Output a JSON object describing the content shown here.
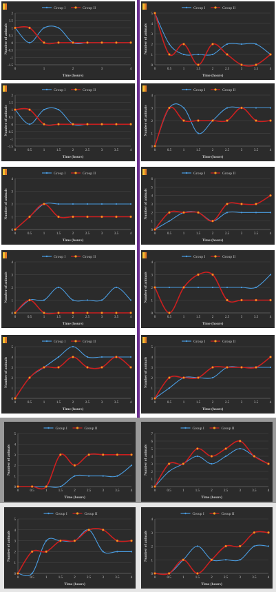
{
  "colors": {
    "group_1": "#4a9ce0",
    "group_2": "#cc1f1f",
    "group_2_marker": "#f0a020",
    "panel_bg": "#2b2b2b",
    "text": "#c8c8c8",
    "grid": "#4a4a4a"
  },
  "legend": {
    "group_1": "Group I",
    "group_2": "Group II"
  },
  "chart_data": [
    {
      "type": "line",
      "xlabel": "Time (hours)",
      "ylabel": "Number of animals",
      "x": [
        0,
        0.5,
        1,
        1.5,
        2,
        2.5,
        3,
        3.5,
        4
      ],
      "x_ticks": [
        0,
        1,
        2,
        3,
        4
      ],
      "ylim": [
        -1.5,
        2
      ],
      "y_ticks": [
        -1.5,
        -1,
        -0.5,
        0,
        0.5,
        1,
        1.5,
        2
      ],
      "legend_position": "top",
      "series": [
        {
          "name": "Group I",
          "values": [
            1,
            0,
            1,
            1,
            0,
            0,
            0,
            0,
            0
          ]
        },
        {
          "name": "Group II",
          "values": [
            1,
            1,
            0,
            0,
            0,
            0,
            0,
            0,
            0
          ]
        }
      ]
    },
    {
      "type": "line",
      "xlabel": "Time (hours)",
      "ylabel": "Number of animals",
      "x": [
        0,
        0.5,
        1,
        1.5,
        2,
        2.5,
        3,
        3.5,
        4
      ],
      "x_ticks": [
        0,
        0.5,
        1,
        1.5,
        2,
        2.5,
        3,
        3.5,
        4
      ],
      "ylim": [
        0,
        5
      ],
      "y_ticks": [
        0,
        1,
        2,
        3,
        4,
        5
      ],
      "legend_position": "top",
      "series": [
        {
          "name": "Group I",
          "values": [
            5,
            2,
            1,
            1,
            1,
            2,
            2,
            2,
            1
          ]
        },
        {
          "name": "Group II",
          "values": [
            5,
            1,
            2,
            0,
            2,
            1,
            0,
            0,
            1
          ]
        }
      ]
    },
    {
      "type": "line",
      "xlabel": "Time (hours)",
      "ylabel": "Number of animals",
      "x": [
        0,
        0.5,
        1,
        1.5,
        2,
        2.5,
        3,
        3.5,
        4
      ],
      "x_ticks": [
        0,
        0.5,
        1,
        1.5,
        2,
        2.5,
        3,
        3.5,
        4
      ],
      "ylim": [
        -1.5,
        2
      ],
      "y_ticks": [
        -1.5,
        -1,
        -0.5,
        0,
        0.5,
        1,
        1.5,
        2
      ],
      "legend_position": "top",
      "series": [
        {
          "name": "Group I",
          "values": [
            1,
            0,
            1,
            1,
            0,
            0,
            0,
            0,
            0
          ]
        },
        {
          "name": "Group II",
          "values": [
            1,
            1,
            0,
            0,
            0,
            0,
            0,
            0,
            0
          ]
        }
      ]
    },
    {
      "type": "line",
      "xlabel": "Time (hours)",
      "ylabel": "Number of animals",
      "x": [
        0,
        0.5,
        1,
        1.5,
        2,
        2.5,
        3,
        3.5,
        4
      ],
      "x_ticks": [
        0,
        0.5,
        1,
        1.5,
        2,
        2.5,
        3,
        3.5,
        4
      ],
      "ylim": [
        0,
        4
      ],
      "y_ticks": [
        0,
        1,
        2,
        3,
        4
      ],
      "legend_position": "top",
      "series": [
        {
          "name": "Group I",
          "values": [
            0,
            3,
            3,
            1,
            2,
            3,
            3,
            3,
            3
          ]
        },
        {
          "name": "Group II",
          "values": [
            0,
            3,
            2,
            2,
            2,
            2,
            3,
            2,
            2
          ]
        }
      ]
    },
    {
      "type": "line",
      "xlabel": "Time (hours)",
      "ylabel": "Number of animals",
      "x": [
        0,
        0.5,
        1,
        1.5,
        2,
        2.5,
        3,
        3.5,
        4
      ],
      "x_ticks": [
        0,
        0.5,
        1,
        1.5,
        2,
        2.5,
        3,
        3.5,
        4
      ],
      "ylim": [
        0,
        4
      ],
      "y_ticks": [
        0,
        1,
        2,
        3,
        4
      ],
      "legend_position": "top",
      "series": [
        {
          "name": "Group I",
          "values": [
            0,
            1,
            2,
            2,
            2,
            2,
            2,
            2,
            2
          ]
        },
        {
          "name": "Group II",
          "values": [
            0,
            1,
            2,
            1,
            1,
            1,
            1,
            1,
            1
          ]
        }
      ]
    },
    {
      "type": "line",
      "xlabel": "Time (hours)",
      "ylabel": "Number of animals",
      "x": [
        0,
        0.5,
        1,
        1.5,
        2,
        2.5,
        3,
        3.5,
        4
      ],
      "x_ticks": [
        0,
        0.5,
        1,
        1.5,
        2,
        2.5,
        3,
        3.5,
        4
      ],
      "ylim": [
        0,
        6
      ],
      "y_ticks": [
        0,
        1,
        2,
        3,
        4,
        5,
        6
      ],
      "legend_position": "top",
      "series": [
        {
          "name": "Group I",
          "values": [
            0,
            1,
            2,
            2,
            1,
            2,
            2,
            2,
            2
          ]
        },
        {
          "name": "Group II",
          "values": [
            0,
            2,
            2,
            2,
            1,
            3,
            3,
            3,
            4
          ]
        }
      ]
    },
    {
      "type": "line",
      "xlabel": "Time (hours)",
      "ylabel": "Number of animals",
      "x": [
        0,
        0.5,
        1,
        1.5,
        2,
        2.5,
        3,
        3.5,
        4
      ],
      "x_ticks": [
        0,
        0.5,
        1,
        1.5,
        2,
        2.5,
        3,
        3.5,
        4
      ],
      "ylim": [
        0,
        4
      ],
      "y_ticks": [
        0,
        1,
        2,
        3,
        4
      ],
      "legend_position": "top",
      "series": [
        {
          "name": "Group I",
          "values": [
            0,
            1,
            1,
            2,
            1,
            1,
            1,
            2,
            1
          ]
        },
        {
          "name": "Group II",
          "values": [
            0,
            1,
            0,
            0,
            0,
            0,
            0,
            0,
            0
          ]
        }
      ]
    },
    {
      "type": "line",
      "xlabel": "Time (hours)",
      "ylabel": "Number of animals",
      "x": [
        0,
        0.5,
        1,
        1.5,
        2,
        2.5,
        3,
        3.5,
        4
      ],
      "x_ticks": [
        0,
        0.5,
        1,
        1.5,
        2,
        2.5,
        3,
        3.5,
        4
      ],
      "ylim": [
        0,
        4
      ],
      "y_ticks": [
        0,
        1,
        2,
        3,
        4
      ],
      "legend_position": "top",
      "series": [
        {
          "name": "Group I",
          "values": [
            2,
            2,
            2,
            2,
            2,
            2,
            2,
            2,
            3
          ]
        },
        {
          "name": "Group II",
          "values": [
            2,
            0,
            2,
            3,
            3,
            1,
            1,
            1,
            1
          ]
        }
      ]
    },
    {
      "type": "line",
      "xlabel": "Time (hours)",
      "ylabel": "Number of animals",
      "x": [
        0,
        0.5,
        1,
        1.5,
        2,
        2.5,
        3,
        3.5,
        4
      ],
      "x_ticks": [
        0,
        0.5,
        1,
        1.5,
        2,
        2.5,
        3,
        3.5,
        4
      ],
      "ylim": [
        0,
        5
      ],
      "y_ticks": [
        0,
        1,
        2,
        3,
        4,
        5
      ],
      "legend_position": "top",
      "series": [
        {
          "name": "Group I",
          "values": [
            0,
            2,
            3,
            4,
            5,
            4,
            4,
            4,
            4
          ]
        },
        {
          "name": "Group II",
          "values": [
            0,
            2,
            3,
            3,
            4,
            3,
            3,
            4,
            3
          ]
        }
      ]
    },
    {
      "type": "line",
      "xlabel": "Time (hours)",
      "ylabel": "Number of animals",
      "x": [
        0,
        0.5,
        1,
        1.5,
        2,
        2.5,
        3,
        3.5,
        4
      ],
      "x_ticks": [
        0,
        0.5,
        1,
        1.5,
        2,
        2.5,
        3,
        3.5,
        4
      ],
      "ylim": [
        0,
        5
      ],
      "y_ticks": [
        0,
        1,
        2,
        3,
        4,
        5
      ],
      "legend_position": "top",
      "series": [
        {
          "name": "Group I",
          "values": [
            0,
            1,
            2,
            2,
            2,
            3,
            3,
            3,
            3
          ]
        },
        {
          "name": "Group II",
          "values": [
            0,
            2,
            2,
            2,
            3,
            3,
            3,
            3,
            4
          ]
        }
      ]
    },
    {
      "type": "line",
      "xlabel": "Time (hours)",
      "ylabel": "Number of animals",
      "x": [
        0,
        0.5,
        1,
        1.5,
        2,
        2.5,
        3,
        3.5,
        4
      ],
      "x_ticks": [
        0,
        0.5,
        1,
        1.5,
        2,
        2.5,
        3,
        3.5,
        4
      ],
      "ylim": [
        0,
        5
      ],
      "y_ticks": [
        0,
        1,
        2,
        3,
        4,
        5
      ],
      "legend_position": "top",
      "series": [
        {
          "name": "Group I",
          "values": [
            0,
            0,
            0,
            0,
            1,
            1,
            1,
            1,
            2
          ]
        },
        {
          "name": "Group II",
          "values": [
            0,
            0,
            0,
            3,
            2,
            3,
            3,
            3,
            3
          ]
        }
      ]
    },
    {
      "type": "line",
      "xlabel": "Time (hours)",
      "ylabel": "Number of animals",
      "x": [
        0,
        0.5,
        1,
        1.5,
        2,
        2.5,
        3,
        3.5,
        4
      ],
      "x_ticks": [
        0,
        0.5,
        1,
        1.5,
        2,
        2.5,
        3,
        3.5,
        4
      ],
      "ylim": [
        0,
        7
      ],
      "y_ticks": [
        0,
        1,
        2,
        3,
        4,
        5,
        6,
        7
      ],
      "legend_position": "top",
      "series": [
        {
          "name": "Group I",
          "values": [
            0,
            2,
            3,
            4,
            3,
            4,
            5,
            4,
            3
          ]
        },
        {
          "name": "Group II",
          "values": [
            0,
            3,
            3,
            5,
            4,
            5,
            6,
            4,
            3
          ]
        }
      ]
    },
    {
      "type": "line",
      "xlabel": "Time (hours)",
      "ylabel": "Number of animals",
      "x": [
        0,
        0.5,
        1,
        1.5,
        2,
        2.5,
        3,
        3.5,
        4
      ],
      "x_ticks": [
        0,
        0.5,
        1,
        1.5,
        2,
        2.5,
        3,
        3.5,
        4
      ],
      "ylim": [
        0,
        5
      ],
      "y_ticks": [
        0,
        1,
        2,
        3,
        4,
        5
      ],
      "legend_position": "top",
      "series": [
        {
          "name": "Group I",
          "values": [
            0,
            0,
            3,
            3,
            3,
            4,
            2,
            2,
            2
          ]
        },
        {
          "name": "Group II",
          "values": [
            0,
            2,
            2,
            3,
            3,
            4,
            4,
            3,
            3
          ]
        }
      ]
    },
    {
      "type": "line",
      "xlabel": "Time (hours)",
      "ylabel": "Number of animals",
      "x": [
        0,
        0.5,
        1,
        1.5,
        2,
        2.5,
        3,
        3.5,
        4
      ],
      "x_ticks": [
        0,
        0.5,
        1,
        1.5,
        2,
        2.5,
        3,
        3.5,
        4
      ],
      "ylim": [
        0,
        4
      ],
      "y_ticks": [
        0,
        1,
        2,
        3,
        4
      ],
      "legend_position": "top",
      "series": [
        {
          "name": "Group I",
          "values": [
            0,
            0,
            1,
            2,
            1,
            1,
            1,
            2,
            2
          ]
        },
        {
          "name": "Group II",
          "values": [
            0,
            0,
            1,
            0,
            1,
            2,
            2,
            3,
            3
          ]
        }
      ]
    }
  ]
}
